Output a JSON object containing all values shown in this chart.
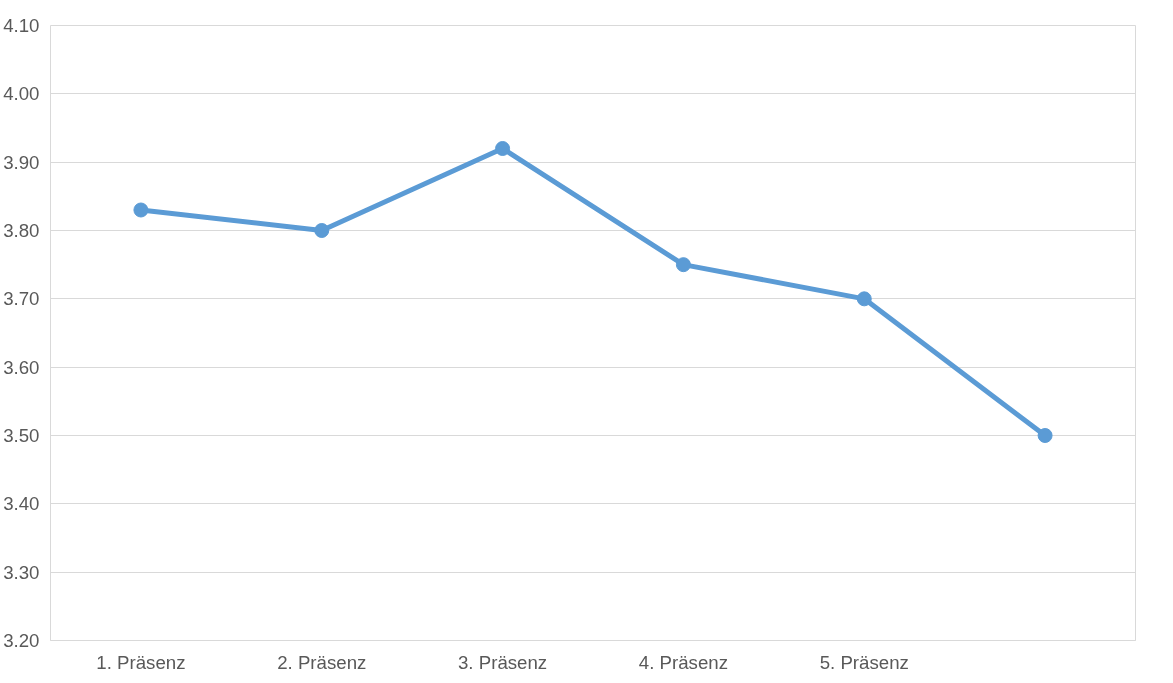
{
  "chart_data": {
    "type": "line",
    "categories": [
      "1. Präsenz",
      "2. Präsenz",
      "3. Präsenz",
      "4. Präsenz",
      "5. Präsenz",
      null
    ],
    "series": [
      {
        "color": "#5b9bd5",
        "values": [
          3.83,
          3.8,
          3.92,
          3.75,
          3.7,
          3.5
        ]
      }
    ],
    "ylim": [
      3.2,
      4.1
    ],
    "yticks": [
      {
        "value": 3.2,
        "label": "3.20"
      },
      {
        "value": 3.3,
        "label": "3.30"
      },
      {
        "value": 3.4,
        "label": "3.40"
      },
      {
        "value": 3.5,
        "label": "3.50"
      },
      {
        "value": 3.6,
        "label": "3.60"
      },
      {
        "value": 3.7,
        "label": "3.70"
      },
      {
        "value": 3.8,
        "label": "3.80"
      },
      {
        "value": 3.9,
        "label": "3.90"
      },
      {
        "value": 4.0,
        "label": "4.00"
      },
      {
        "value": 4.1,
        "label": "4.10"
      }
    ],
    "grid": "y",
    "marker": "circle",
    "line_style": "solid"
  }
}
